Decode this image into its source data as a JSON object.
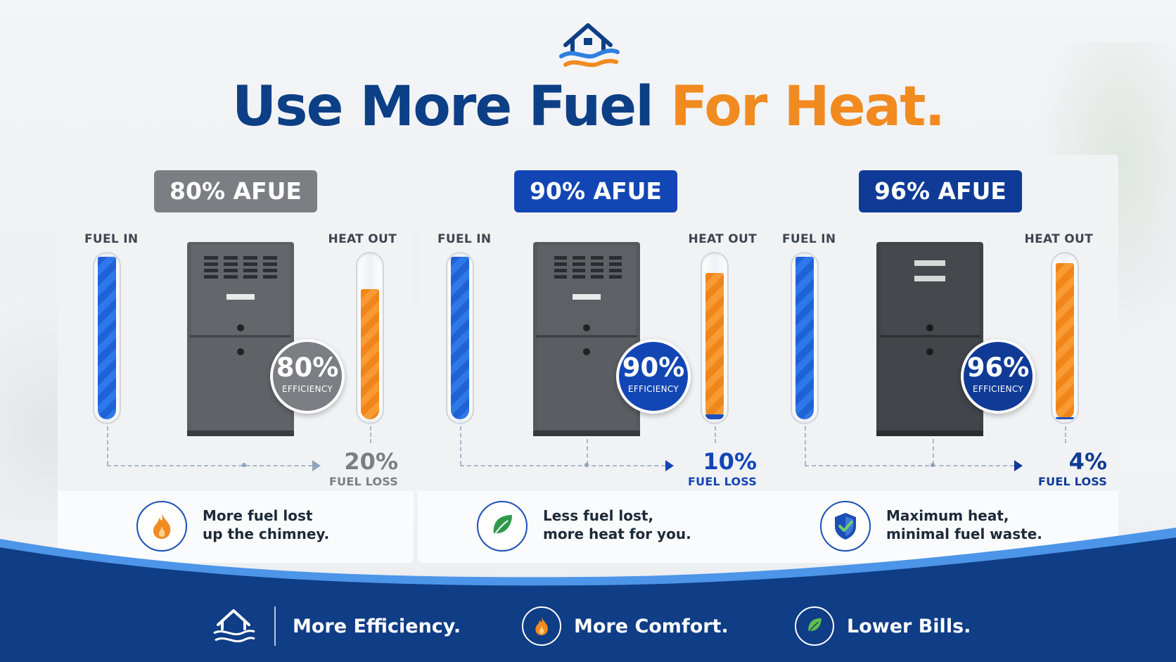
{
  "header": {
    "title_part1": "Use More Fuel",
    "title_part2": "For Heat."
  },
  "panels": [
    {
      "badge": "80% AFUE",
      "fuel_in_label": "FUEL IN",
      "heat_out_label": "HEAT OUT",
      "efficiency_value": "80%",
      "efficiency_label": "EFFICIENCY",
      "fuel_in_level": 1.0,
      "heat_out_level": 0.8,
      "fuel_loss_value": "20%",
      "fuel_loss_label": "FUEL LOSS",
      "note_line1": "More fuel lost",
      "note_line2": "up the chimney.",
      "note_icon": "flame-icon",
      "accent": "#7b7e82"
    },
    {
      "badge": "90% AFUE",
      "fuel_in_label": "FUEL IN",
      "heat_out_label": "HEAT OUT",
      "efficiency_value": "90%",
      "efficiency_label": "EFFICIENCY",
      "fuel_in_level": 1.0,
      "heat_out_level": 0.9,
      "fuel_loss_value": "10%",
      "fuel_loss_label": "FUEL LOSS",
      "note_line1": "Less fuel lost,",
      "note_line2": "more heat for you.",
      "note_icon": "leaf-icon",
      "accent": "#1346b5"
    },
    {
      "badge": "96% AFUE",
      "fuel_in_label": "FUEL IN",
      "heat_out_label": "HEAT OUT",
      "efficiency_value": "96%",
      "efficiency_label": "EFFICIENCY",
      "fuel_in_level": 1.0,
      "heat_out_level": 0.96,
      "fuel_loss_value": "4%",
      "fuel_loss_label": "FUEL LOSS",
      "note_line1": "Maximum heat,",
      "note_line2": "minimal fuel waste.",
      "note_icon": "shield-check-icon",
      "accent": "#0f3a96"
    }
  ],
  "footer": {
    "item1": "More Efficiency.",
    "item2": "More Comfort.",
    "item3": "Lower Bills."
  },
  "colors": {
    "navy": "#0d3f86",
    "orange": "#f18a1f",
    "blue": "#1e63d6",
    "gray_badge": "#7b7e82"
  }
}
